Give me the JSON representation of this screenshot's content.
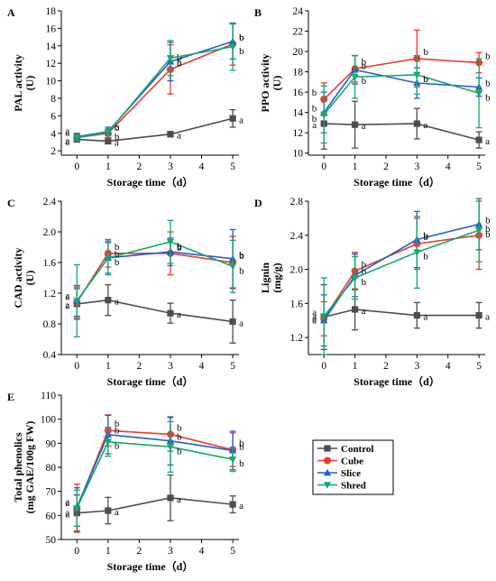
{
  "colors": {
    "Control": "#4d4d4d",
    "Cube": "#ee3b2f",
    "Slice": "#1f5fd6",
    "Shred": "#15a86a"
  },
  "markers": {
    "Control": "square",
    "Cube": "circle",
    "Slice": "triangle-up",
    "Shred": "triangle-down"
  },
  "legend": {
    "entries": [
      "Control",
      "Cube",
      "Slice",
      "Shred"
    ]
  },
  "chart_data": [
    {
      "panel": "A",
      "type": "line",
      "xlabel": "Storage time（d）",
      "ylabel": "PAL activity",
      "yunit": "(U)",
      "xlim": [
        -0.5,
        5.2
      ],
      "ylim": [
        1.5,
        18
      ],
      "xticks": [
        0,
        1,
        2,
        3,
        4,
        5
      ],
      "yticks": [
        2,
        4,
        6,
        8,
        10,
        12,
        14,
        16,
        18
      ],
      "ytick_labels": [
        "2",
        "4",
        "6",
        "8",
        "10",
        "12",
        "14",
        "16",
        "18"
      ],
      "x": [
        0,
        1,
        3,
        5
      ],
      "series": [
        {
          "name": "Control",
          "values": [
            3.3,
            3.1,
            3.9,
            5.7
          ],
          "errors": [
            0.3,
            0.3,
            0.3,
            1.0
          ],
          "labels": [
            "a",
            "a",
            "a",
            "a"
          ]
        },
        {
          "name": "Cube",
          "values": [
            3.5,
            4.0,
            11.3,
            14.2
          ],
          "errors": [
            0.4,
            0.5,
            2.8,
            2.4
          ],
          "labels": [
            "a",
            "b",
            "b",
            "b"
          ]
        },
        {
          "name": "Slice",
          "values": [
            3.6,
            4.2,
            12.2,
            14.5
          ],
          "errors": [
            0.4,
            0.5,
            2.2,
            2.0
          ],
          "labels": [
            "a",
            "b",
            "b",
            "b"
          ]
        },
        {
          "name": "Shred",
          "values": [
            3.5,
            4.1,
            12.6,
            13.9
          ],
          "errors": [
            0.3,
            0.4,
            2.0,
            2.7
          ],
          "labels": [
            "a",
            "b",
            "b",
            "b"
          ]
        }
      ]
    },
    {
      "panel": "B",
      "type": "line",
      "xlabel": "Storage time（d）",
      "ylabel": "PPO activity",
      "yunit": "(U)",
      "xlim": [
        -0.5,
        5.2
      ],
      "ylim": [
        9.8,
        24
      ],
      "xticks": [
        0,
        1,
        2,
        3,
        4,
        5
      ],
      "yticks": [
        10,
        12,
        14,
        16,
        18,
        20,
        22,
        24
      ],
      "ytick_labels": [
        "10",
        "12",
        "14",
        "16",
        "18",
        "20",
        "22",
        "24"
      ],
      "x": [
        0,
        1,
        3,
        5
      ],
      "series": [
        {
          "name": "Control",
          "values": [
            12.9,
            12.8,
            12.9,
            11.3
          ],
          "errors": [
            2.5,
            2.3,
            1.5,
            0.8
          ],
          "labels": [
            "a",
            "a",
            "a",
            "a"
          ]
        },
        {
          "name": "Cube",
          "values": [
            15.3,
            18.3,
            19.3,
            18.9
          ],
          "errors": [
            1.6,
            1.3,
            2.8,
            1.0
          ],
          "labels": [
            "b",
            "b",
            "b",
            "b"
          ]
        },
        {
          "name": "Slice",
          "values": [
            14.0,
            18.2,
            16.9,
            16.5
          ],
          "errors": [
            2.0,
            1.4,
            1.5,
            0.9
          ],
          "labels": [
            "b",
            "b",
            "b",
            "b"
          ]
        },
        {
          "name": "Shred",
          "values": [
            13.8,
            17.5,
            17.7,
            15.9
          ],
          "errors": [
            2.8,
            2.1,
            1.9,
            3.4
          ],
          "labels": [
            "b",
            "b",
            "b",
            "b"
          ]
        }
      ]
    },
    {
      "panel": "C",
      "type": "line",
      "xlabel": "Storage time（d）",
      "ylabel": "CAD activity",
      "yunit": "(U)",
      "xlim": [
        -0.5,
        5.2
      ],
      "ylim": [
        0.4,
        2.4
      ],
      "xticks": [
        0,
        1,
        2,
        3,
        4,
        5
      ],
      "yticks": [
        0.4,
        0.8,
        1.2,
        1.6,
        2.0,
        2.4
      ],
      "ytick_labels": [
        "0.4",
        "0.8",
        "1.2",
        "1.6",
        "2.0",
        "2.4"
      ],
      "x": [
        0,
        1,
        3,
        5
      ],
      "series": [
        {
          "name": "Control",
          "values": [
            1.06,
            1.11,
            0.94,
            0.83
          ],
          "errors": [
            0.2,
            0.2,
            0.13,
            0.28
          ],
          "labels": [
            "a",
            "a",
            "a",
            "a"
          ]
        },
        {
          "name": "Cube",
          "values": [
            1.08,
            1.72,
            1.72,
            1.6
          ],
          "errors": [
            0.2,
            0.18,
            0.28,
            0.34
          ],
          "labels": [
            "a",
            "b",
            "b",
            "b"
          ]
        },
        {
          "name": "Slice",
          "values": [
            1.1,
            1.66,
            1.74,
            1.65
          ],
          "errors": [
            0.2,
            0.2,
            0.18,
            0.38
          ],
          "labels": [
            "a",
            "b",
            "b",
            "b"
          ]
        },
        {
          "name": "Shred",
          "values": [
            1.1,
            1.66,
            1.87,
            1.55
          ],
          "errors": [
            0.47,
            0.22,
            0.28,
            0.34
          ],
          "labels": [
            "a",
            "b",
            "b",
            "b"
          ]
        }
      ]
    },
    {
      "panel": "D",
      "type": "line",
      "xlabel": "Storage time（d）",
      "ylabel": "Lignin",
      "yunit": "(mg/g)",
      "xlim": [
        -0.5,
        5.2
      ],
      "ylim": [
        1.0,
        2.8
      ],
      "xticks": [
        0,
        1,
        2,
        3,
        4,
        5
      ],
      "yticks": [
        1.2,
        1.6,
        2.0,
        2.4,
        2.8
      ],
      "ytick_labels": [
        "1.2",
        "1.6",
        "2.0",
        "2.4",
        "2.8"
      ],
      "x": [
        0,
        1,
        3,
        5
      ],
      "series": [
        {
          "name": "Control",
          "values": [
            1.44,
            1.53,
            1.46,
            1.46
          ],
          "errors": [
            0.38,
            0.24,
            0.15,
            0.15
          ],
          "labels": [
            "a",
            "a",
            "a",
            "a"
          ]
        },
        {
          "name": "Cube",
          "values": [
            1.42,
            1.98,
            2.3,
            2.4
          ],
          "errors": [
            0.2,
            0.22,
            0.3,
            0.4
          ],
          "labels": [
            "a",
            "b",
            "b",
            "b"
          ]
        },
        {
          "name": "Slice",
          "values": [
            1.4,
            1.93,
            2.35,
            2.53
          ],
          "errors": [
            0.3,
            0.25,
            0.33,
            0.3
          ],
          "labels": [
            "a",
            "b",
            "b",
            "b"
          ]
        },
        {
          "name": "Shred",
          "values": [
            1.45,
            1.9,
            2.2,
            2.46
          ],
          "errors": [
            0.45,
            0.25,
            0.42,
            0.37
          ],
          "labels": [
            "a",
            "b",
            "b",
            "b"
          ]
        }
      ]
    },
    {
      "panel": "E",
      "type": "line",
      "xlabel": "Storage time（d）",
      "ylabel": "Total phenolics",
      "yunit": "(mg GAE/100g FW)",
      "xlim": [
        -0.5,
        5.2
      ],
      "ylim": [
        50,
        110
      ],
      "xticks": [
        0,
        1,
        2,
        3,
        4,
        5
      ],
      "yticks": [
        50,
        60,
        70,
        80,
        90,
        100,
        110
      ],
      "ytick_labels": [
        "50",
        "60",
        "70",
        "80",
        "90",
        "100",
        "110"
      ],
      "x": [
        0,
        1,
        3,
        5
      ],
      "series": [
        {
          "name": "Control",
          "values": [
            61.0,
            62.0,
            67.3,
            64.6
          ],
          "errors": [
            7.5,
            5.5,
            9.5,
            3.5
          ],
          "labels": [
            "a",
            "a",
            "a",
            "a"
          ]
        },
        {
          "name": "Cube",
          "values": [
            63.0,
            95.3,
            93.7,
            87.3
          ],
          "errors": [
            10.0,
            6.5,
            7.0,
            7.0
          ],
          "labels": [
            "a",
            "b",
            "b",
            "b"
          ]
        },
        {
          "name": "Slice",
          "values": [
            63.5,
            93.6,
            91.0,
            87.0
          ],
          "errors": [
            8.0,
            8.0,
            10.0,
            8.0
          ],
          "labels": [
            "a",
            "b",
            "b",
            "b"
          ]
        },
        {
          "name": "Shred",
          "values": [
            63.0,
            90.6,
            88.5,
            83.3
          ],
          "errors": [
            7.5,
            6.0,
            10.5,
            5.0
          ],
          "labels": [
            "a",
            "b",
            "b",
            "b"
          ]
        }
      ]
    }
  ]
}
